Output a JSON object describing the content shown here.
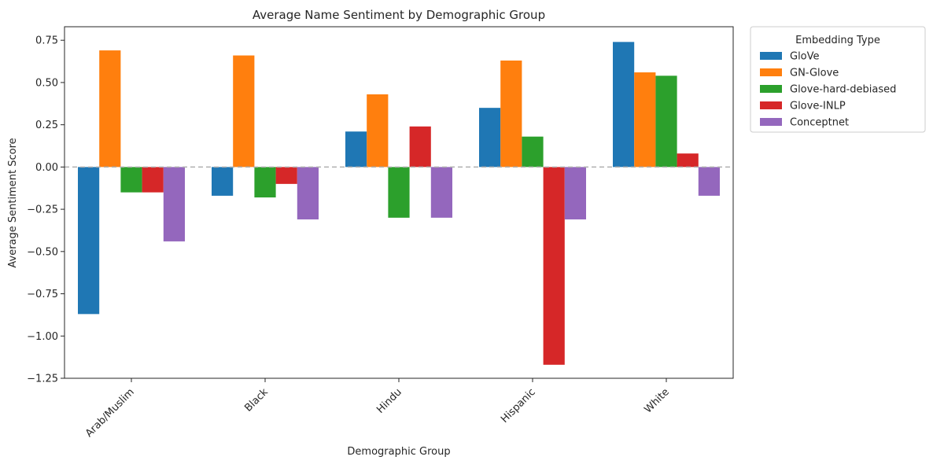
{
  "chart_data": {
    "type": "bar",
    "title": "Average Name Sentiment by Demographic Group",
    "xlabel": "Demographic Group",
    "ylabel": "Average Sentiment Score",
    "categories": [
      "Arab/Muslim",
      "Black",
      "Hindu",
      "Hispanic",
      "White"
    ],
    "series": [
      {
        "name": "GloVe",
        "color": "#1f77b4",
        "values": [
          -0.87,
          -0.17,
          0.21,
          0.35,
          0.74
        ]
      },
      {
        "name": "GN-Glove",
        "color": "#ff7f0e",
        "values": [
          0.69,
          0.66,
          0.43,
          0.63,
          0.56
        ]
      },
      {
        "name": "Glove-hard-debiased",
        "color": "#2ca02c",
        "values": [
          -0.15,
          -0.18,
          -0.3,
          0.18,
          0.54
        ]
      },
      {
        "name": "Glove-INLP",
        "color": "#d62728",
        "values": [
          -0.15,
          -0.1,
          0.24,
          -1.17,
          0.08
        ]
      },
      {
        "name": "Conceptnet",
        "color": "#9467bd",
        "values": [
          -0.44,
          -0.31,
          -0.3,
          -0.31,
          -0.17
        ]
      }
    ],
    "ylim": [
      -1.25,
      0.83
    ],
    "yticks": [
      "0.75",
      "0.50",
      "0.25",
      "0.00",
      "−0.25",
      "−0.50",
      "−0.75",
      "−1.00",
      "−1.25"
    ],
    "ytick_values": [
      0.75,
      0.5,
      0.25,
      0.0,
      -0.25,
      -0.5,
      -0.75,
      -1.0,
      -1.25
    ],
    "legend_title": "Embedding Type",
    "legend_position": "outside-right",
    "zero_line": "dashed gray",
    "grid": false
  }
}
